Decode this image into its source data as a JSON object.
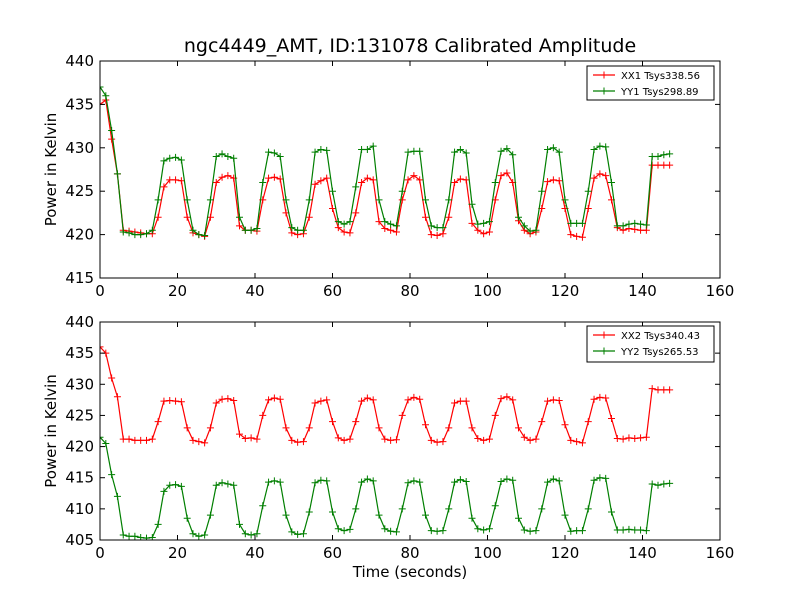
{
  "chart_data": [
    {
      "type": "line",
      "title": "ngc4449_AMT, ID:131078 Calibrated Amplitude",
      "xlabel": "",
      "ylabel": "Power in Kelvin",
      "xlim": [
        0,
        160
      ],
      "ylim": [
        415,
        440
      ],
      "xticks": [
        0,
        20,
        40,
        60,
        80,
        100,
        120,
        140,
        160
      ],
      "yticks": [
        415,
        420,
        425,
        430,
        435,
        440
      ],
      "grid": false,
      "legend": "top-right",
      "series": [
        {
          "name": "XX1 Tsys338.56",
          "color": "#ff0000",
          "x": [
            0,
            1.5,
            3,
            4.5,
            6,
            7.5,
            9,
            10.5,
            12,
            13.5,
            15,
            16.5,
            18,
            19.5,
            21,
            22.5,
            24,
            25.5,
            27,
            28.5,
            30,
            31.5,
            33,
            34.5,
            36,
            37.5,
            39,
            40.5,
            42,
            43.5,
            45,
            46.5,
            48,
            49.5,
            51,
            52.5,
            54,
            55.5,
            57,
            58.5,
            60,
            61.5,
            63,
            64.5,
            66,
            67.5,
            69,
            70.5,
            72,
            73.5,
            75,
            76.5,
            78,
            79.5,
            81,
            82.5,
            84,
            85.5,
            87,
            88.5,
            90,
            91.5,
            93,
            94.5,
            96,
            97.5,
            99,
            100.5,
            102,
            103.5,
            105,
            106.5,
            108,
            109.5,
            111,
            112.5,
            114,
            115.5,
            117,
            118.5,
            120,
            121.5,
            123,
            124.5,
            126,
            127.5,
            129,
            130.5,
            132,
            133.5,
            135,
            136.5,
            138,
            139.5,
            141,
            142.5,
            144,
            145.5,
            147
          ],
          "y": [
            435,
            435.5,
            431,
            427,
            420.5,
            420.4,
            420.3,
            420.2,
            420.1,
            420.1,
            422,
            425.5,
            426.3,
            426.3,
            426.2,
            422,
            420.2,
            420,
            419.8,
            422,
            426,
            426.6,
            426.8,
            426.5,
            421,
            420.5,
            420.5,
            420.4,
            424,
            426.5,
            426.6,
            426.4,
            422.5,
            420.2,
            420,
            420.1,
            422,
            425.8,
            426.2,
            426.5,
            423,
            420.8,
            420.3,
            420.2,
            422.5,
            426,
            426.5,
            426.3,
            421.5,
            420.7,
            420.5,
            420.3,
            424,
            426.3,
            426.8,
            426.3,
            422,
            420,
            419.9,
            420.1,
            422,
            426,
            426.4,
            426.3,
            421.3,
            420.5,
            420.1,
            420.3,
            424,
            426.8,
            427.1,
            426,
            421.6,
            420.5,
            420.1,
            420.3,
            423,
            426.1,
            426.3,
            426.2,
            423,
            420,
            419.8,
            419.7,
            423,
            426.5,
            427,
            426.8,
            424,
            420.8,
            420.5,
            420.7,
            420.6,
            420.5,
            420.5,
            428,
            428,
            428,
            428
          ]
        },
        {
          "name": "YY1 Tsys298.89",
          "color": "#007f00",
          "x": [
            0,
            1.5,
            3,
            4.5,
            6,
            7.5,
            9,
            10.5,
            12,
            13.5,
            15,
            16.5,
            18,
            19.5,
            21,
            22.5,
            24,
            25.5,
            27,
            28.5,
            30,
            31.5,
            33,
            34.5,
            36,
            37.5,
            39,
            40.5,
            42,
            43.5,
            45,
            46.5,
            48,
            49.5,
            51,
            52.5,
            54,
            55.5,
            57,
            58.5,
            60,
            61.5,
            63,
            64.5,
            66,
            67.5,
            69,
            70.5,
            72,
            73.5,
            75,
            76.5,
            78,
            79.5,
            81,
            82.5,
            84,
            85.5,
            87,
            88.5,
            90,
            91.5,
            93,
            94.5,
            96,
            97.5,
            99,
            100.5,
            102,
            103.5,
            105,
            106.5,
            108,
            109.5,
            111,
            112.5,
            114,
            115.5,
            117,
            118.5,
            120,
            121.5,
            123,
            124.5,
            126,
            127.5,
            129,
            130.5,
            132,
            133.5,
            135,
            136.5,
            138,
            139.5,
            141,
            142.5,
            144,
            145.5,
            147
          ],
          "y": [
            437,
            436,
            432,
            427,
            420.3,
            420.2,
            420,
            420,
            420.1,
            420.5,
            424,
            428.5,
            428.8,
            428.9,
            428.6,
            424,
            420.5,
            420,
            419.9,
            424,
            429,
            429.3,
            429,
            428.8,
            422,
            420.5,
            420.5,
            420.7,
            426,
            429.5,
            429.4,
            429,
            424,
            420.8,
            420.5,
            420.5,
            424,
            429.5,
            429.8,
            429.7,
            425,
            421.5,
            421.2,
            421.5,
            425.5,
            429.8,
            429.8,
            430.2,
            424,
            421.5,
            421.2,
            421,
            425,
            429.5,
            429.6,
            429.6,
            424,
            421,
            420.8,
            420.8,
            424,
            429.5,
            429.8,
            429.4,
            423.5,
            421.2,
            421.3,
            421.5,
            426,
            429.6,
            429.9,
            429.2,
            422,
            421,
            420.4,
            420.5,
            425,
            429.8,
            430,
            429.5,
            424,
            421.3,
            421.3,
            421.3,
            425,
            429.8,
            430.2,
            430.1,
            426,
            421,
            421,
            421.2,
            421.3,
            421.2,
            421.1,
            429,
            429,
            429.2,
            429.3
          ]
        }
      ]
    },
    {
      "type": "line",
      "title": "",
      "xlabel": "Time (seconds)",
      "ylabel": "Power in Kelvin",
      "xlim": [
        0,
        160
      ],
      "ylim": [
        405,
        440
      ],
      "xticks": [
        0,
        20,
        40,
        60,
        80,
        100,
        120,
        140,
        160
      ],
      "yticks": [
        405,
        410,
        415,
        420,
        425,
        430,
        435,
        440
      ],
      "grid": false,
      "legend": "top-right",
      "series": [
        {
          "name": "XX2 Tsys340.43",
          "color": "#ff0000",
          "x": [
            0,
            1.5,
            3,
            4.5,
            6,
            7.5,
            9,
            10.5,
            12,
            13.5,
            15,
            16.5,
            18,
            19.5,
            21,
            22.5,
            24,
            25.5,
            27,
            28.5,
            30,
            31.5,
            33,
            34.5,
            36,
            37.5,
            39,
            40.5,
            42,
            43.5,
            45,
            46.5,
            48,
            49.5,
            51,
            52.5,
            54,
            55.5,
            57,
            58.5,
            60,
            61.5,
            63,
            64.5,
            66,
            67.5,
            69,
            70.5,
            72,
            73.5,
            75,
            76.5,
            78,
            79.5,
            81,
            82.5,
            84,
            85.5,
            87,
            88.5,
            90,
            91.5,
            93,
            94.5,
            96,
            97.5,
            99,
            100.5,
            102,
            103.5,
            105,
            106.5,
            108,
            109.5,
            111,
            112.5,
            114,
            115.5,
            117,
            118.5,
            120,
            121.5,
            123,
            124.5,
            126,
            127.5,
            129,
            130.5,
            132,
            133.5,
            135,
            136.5,
            138,
            139.5,
            141,
            142.5,
            144,
            145.5,
            147
          ],
          "y": [
            436,
            435,
            431,
            428,
            421.2,
            421.2,
            421,
            421,
            421,
            421.2,
            424,
            427.3,
            427.4,
            427.3,
            427.2,
            423,
            421,
            420.8,
            420.6,
            423,
            427,
            427.6,
            427.7,
            427.4,
            422,
            421.3,
            421.4,
            421.2,
            425,
            427.5,
            427.8,
            427.6,
            423,
            421,
            420.7,
            420.8,
            423,
            427,
            427.3,
            427.5,
            424,
            421.4,
            421,
            421.2,
            424,
            427.3,
            427.8,
            427.5,
            423,
            421.2,
            421,
            421.1,
            425,
            427.5,
            427.9,
            427.6,
            423.5,
            421,
            420.7,
            420.8,
            423,
            427,
            427.3,
            427.3,
            423,
            421.3,
            421,
            421.2,
            425,
            427.7,
            428,
            427.5,
            423,
            421.5,
            421,
            421.2,
            424,
            427.3,
            427.5,
            427.4,
            423.5,
            421,
            420.8,
            420.6,
            424,
            427.6,
            427.9,
            427.8,
            424.5,
            421.3,
            421.2,
            421.4,
            421.3,
            421.4,
            421.5,
            429.3,
            429.1,
            429.1,
            429.1
          ]
        },
        {
          "name": "YY2 Tsys265.53",
          "color": "#007f00",
          "x": [
            0,
            1.5,
            3,
            4.5,
            6,
            7.5,
            9,
            10.5,
            12,
            13.5,
            15,
            16.5,
            18,
            19.5,
            21,
            22.5,
            24,
            25.5,
            27,
            28.5,
            30,
            31.5,
            33,
            34.5,
            36,
            37.5,
            39,
            40.5,
            42,
            43.5,
            45,
            46.5,
            48,
            49.5,
            51,
            52.5,
            54,
            55.5,
            57,
            58.5,
            60,
            61.5,
            63,
            64.5,
            66,
            67.5,
            69,
            70.5,
            72,
            73.5,
            75,
            76.5,
            78,
            79.5,
            81,
            82.5,
            84,
            85.5,
            87,
            88.5,
            90,
            91.5,
            93,
            94.5,
            96,
            97.5,
            99,
            100.5,
            102,
            103.5,
            105,
            106.5,
            108,
            109.5,
            111,
            112.5,
            114,
            115.5,
            117,
            118.5,
            120,
            121.5,
            123,
            124.5,
            126,
            127.5,
            129,
            130.5,
            132,
            133.5,
            135,
            136.5,
            138,
            139.5,
            141,
            142.5,
            144,
            145.5,
            147
          ],
          "y": [
            421.5,
            420.5,
            415.5,
            412,
            405.8,
            405.6,
            405.6,
            405.4,
            405.3,
            405.4,
            407.5,
            412.8,
            413.8,
            413.9,
            413.6,
            408.5,
            406,
            405.6,
            405.8,
            409,
            413.8,
            414.2,
            414,
            413.8,
            407.5,
            406,
            405.8,
            406,
            410.5,
            414.3,
            414.5,
            414.3,
            409,
            406.3,
            405.9,
            406,
            409.5,
            414.2,
            414.6,
            414.5,
            409.5,
            406.8,
            406.5,
            406.7,
            410,
            414.3,
            414.8,
            414.5,
            409,
            406.8,
            406.4,
            406.3,
            410,
            414.2,
            414.5,
            414.3,
            409,
            406.5,
            406.4,
            406.5,
            410,
            414.3,
            414.7,
            414.4,
            408.5,
            406.8,
            406.6,
            406.8,
            410.5,
            414.4,
            414.8,
            414.6,
            408.5,
            406.6,
            406.4,
            406.5,
            410,
            414.3,
            414.8,
            414.5,
            409,
            406.4,
            406.5,
            406.5,
            410,
            414.6,
            415,
            414.9,
            409.5,
            406.6,
            406.6,
            406.7,
            406.6,
            406.6,
            406.5,
            414,
            413.8,
            414,
            414.1
          ]
        }
      ]
    }
  ]
}
